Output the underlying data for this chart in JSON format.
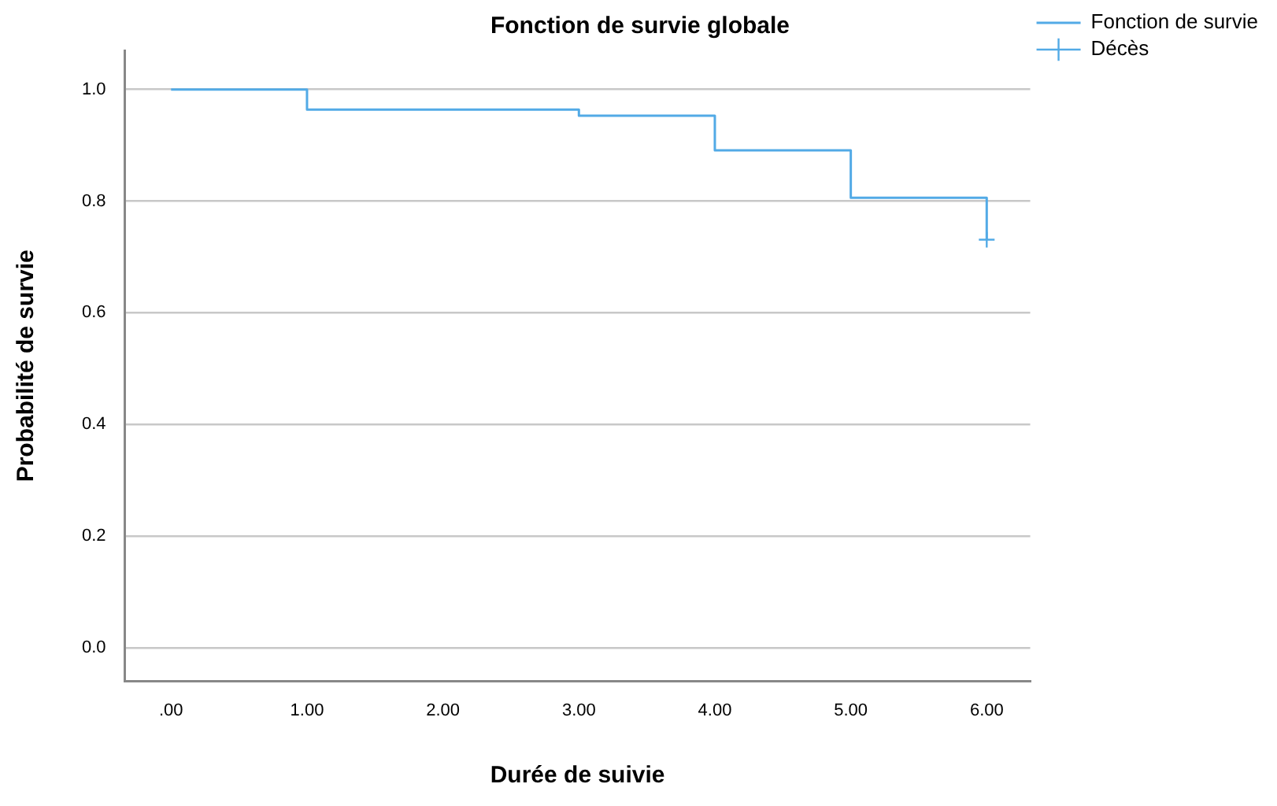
{
  "chart_data": {
    "type": "step",
    "title": "Fonction de survie globale",
    "xlabel": "Durée de suivie",
    "ylabel": "Probabilité de survie",
    "x": [
      0,
      1,
      3,
      4,
      5,
      6
    ],
    "series": [
      {
        "name": "Fonction de survie",
        "type": "step",
        "color": "#52aae6",
        "values": [
          1.0,
          0.964,
          0.953,
          0.891,
          0.806,
          0.731
        ]
      },
      {
        "name": "Décès",
        "type": "scatter",
        "marker": "cross",
        "color": "#52aae6",
        "x": [
          6
        ],
        "values": [
          0.731
        ]
      }
    ],
    "xlim": [
      -0.34,
      6.32
    ],
    "ylim": [
      -0.06,
      1.07
    ],
    "xticks": [
      {
        "value": 0,
        "label": ".00"
      },
      {
        "value": 1,
        "label": "1.00"
      },
      {
        "value": 2,
        "label": "2.00"
      },
      {
        "value": 3,
        "label": "3.00"
      },
      {
        "value": 4,
        "label": "4.00"
      },
      {
        "value": 5,
        "label": "5.00"
      },
      {
        "value": 6,
        "label": "6.00"
      }
    ],
    "yticks": [
      {
        "value": 0,
        "label": "0.0"
      },
      {
        "value": 0.2,
        "label": "0.2"
      },
      {
        "value": 0.4,
        "label": "0.4"
      },
      {
        "value": 0.6,
        "label": "0.6"
      },
      {
        "value": 0.8,
        "label": "0.8"
      },
      {
        "value": 1,
        "label": "1.0"
      }
    ],
    "grid": "y",
    "legend": "top right"
  }
}
